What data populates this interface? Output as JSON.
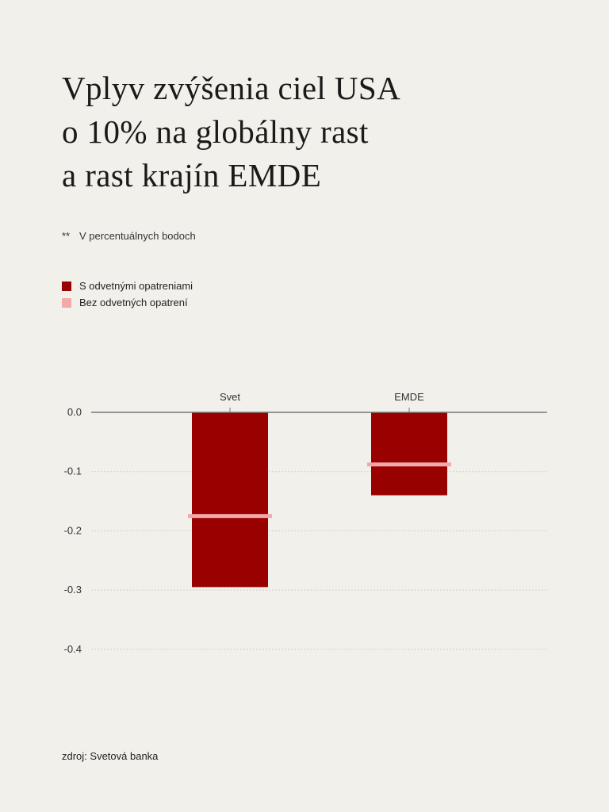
{
  "title_lines": [
    "Vplyv zvýšenia ciel USA",
    "o 10% na globálny rast",
    "a rast krajín EMDE"
  ],
  "note": {
    "marker": "**",
    "text": "V percentuálnych bodoch"
  },
  "legend": [
    {
      "label": "S odvetnými opatreniami",
      "color": "#990000"
    },
    {
      "label": "Bez odvetných opatrení",
      "color": "#f2a9a9"
    }
  ],
  "source": "zdroj: Svetová banka",
  "chart_data": {
    "type": "bar",
    "title": "Vplyv zvýšenia ciel USA o 10% na globálny rast a rast krajín EMDE",
    "categories": [
      "Svet",
      "EMDE"
    ],
    "series": [
      {
        "name": "S odvetnými opatreniami",
        "values": [
          -0.295,
          -0.14
        ],
        "color": "#990000",
        "style": "bar"
      },
      {
        "name": "Bez odvetných opatrení",
        "values": [
          -0.175,
          -0.088
        ],
        "color": "#f2a9a9",
        "style": "marker"
      }
    ],
    "y_ticks": [
      "0.0",
      "-0.1",
      "-0.2",
      "-0.3",
      "-0.4"
    ],
    "y_tick_values": [
      0,
      -0.1,
      -0.2,
      -0.3,
      -0.4
    ],
    "ylim": [
      -0.4,
      0
    ],
    "xlabel": "",
    "ylabel": "",
    "grid": true,
    "category_axis_position": "top",
    "legend_position": "top-left"
  }
}
